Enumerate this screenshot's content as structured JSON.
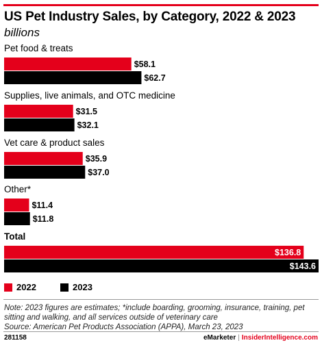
{
  "header": {
    "title": "US Pet Industry Sales, by Category, 2022 & 2023",
    "subtitle": "billions"
  },
  "colors": {
    "brand_red": "#e4001b",
    "series_2022": "#e4001b",
    "series_2023": "#000000"
  },
  "chart_data": {
    "type": "bar",
    "orientation": "horizontal",
    "title": "US Pet Industry Sales, by Category, 2022 & 2023",
    "subtitle": "billions",
    "categories": [
      "Pet food & treats",
      "Supplies, live animals, and OTC medicine",
      "Vet care & product sales",
      "Other*",
      "Total"
    ],
    "series": [
      {
        "name": "2022",
        "color": "#e4001b",
        "values": [
          58.1,
          31.5,
          35.9,
          11.4,
          136.8
        ],
        "labels": [
          "$58.1",
          "$31.5",
          "$35.9",
          "$11.4",
          "$136.8"
        ]
      },
      {
        "name": "2023",
        "color": "#000000",
        "values": [
          62.7,
          32.1,
          37.0,
          11.8,
          143.6
        ],
        "labels": [
          "$62.7",
          "$32.1",
          "$37.0",
          "$11.8",
          "$143.6"
        ]
      }
    ],
    "xlim": [
      0,
      143.6
    ],
    "grid": false,
    "legend_position": "bottom-left"
  },
  "legend": {
    "items": [
      {
        "label": "2022",
        "color": "#e4001b"
      },
      {
        "label": "2023",
        "color": "#000000"
      }
    ]
  },
  "footnote": {
    "line1": "Note: 2023 figures are estimates; *include boarding, grooming, insurance, training, pet sitting and walking, and all services outside of veterinary care",
    "line2": "Source: American Pet Products Association (APPA), March 23, 2023"
  },
  "footer": {
    "id": "281158",
    "brand_left": "eMarketer",
    "separator": "|",
    "brand_right": "InsiderIntelligence.com"
  }
}
